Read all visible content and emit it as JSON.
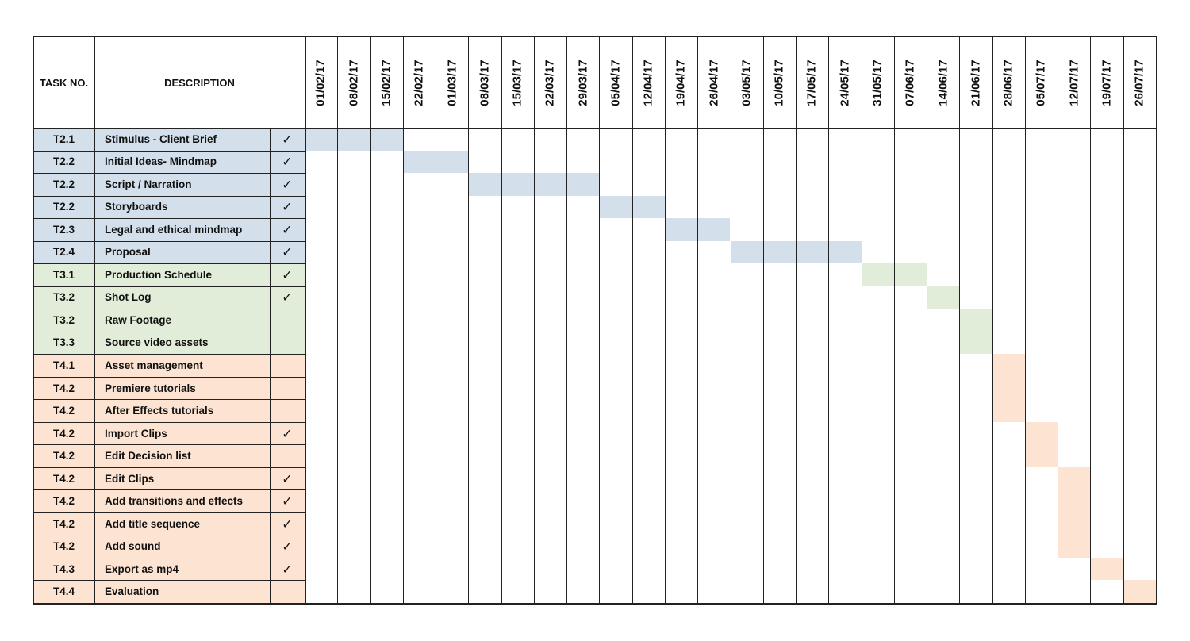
{
  "chart_data": {
    "type": "gantt",
    "headers": {
      "task_no": "TASK NO.",
      "description": "DESCRIPTION"
    },
    "check_mark": "✓",
    "colors": {
      "T2": "#d3dfea",
      "T3": "#e2edd9",
      "T4": "#fde4d2"
    },
    "weeks": [
      "01/02/17",
      "08/02/17",
      "15/02/17",
      "22/02/17",
      "01/03/17",
      "08/03/17",
      "15/03/17",
      "22/03/17",
      "29/03/17",
      "05/04/17",
      "12/04/17",
      "19/04/17",
      "26/04/17",
      "03/05/17",
      "10/05/17",
      "17/05/17",
      "24/05/17",
      "31/05/17",
      "07/06/17",
      "14/06/17",
      "21/06/17",
      "28/06/17",
      "05/07/17",
      "12/07/17",
      "19/07/17",
      "26/07/17"
    ],
    "tasks": [
      {
        "task_no": "T2.1",
        "description": "Stimulus - Client Brief",
        "done": true,
        "phase": "T2",
        "start": "01/02/17",
        "end": "15/02/17",
        "bar_rows": 1
      },
      {
        "task_no": "T2.2",
        "description": "Initial Ideas- Mindmap",
        "done": true,
        "phase": "T2",
        "start": "22/02/17",
        "end": "01/03/17",
        "bar_rows": 1
      },
      {
        "task_no": "T2.2",
        "description": "Script / Narration",
        "done": true,
        "phase": "T2",
        "start": "08/03/17",
        "end": "29/03/17",
        "bar_rows": 1
      },
      {
        "task_no": "T2.2",
        "description": "Storyboards",
        "done": true,
        "phase": "T2",
        "start": "05/04/17",
        "end": "12/04/17",
        "bar_rows": 1
      },
      {
        "task_no": "T2.3",
        "description": "Legal and ethical mindmap",
        "done": true,
        "phase": "T2",
        "start": "19/04/17",
        "end": "26/04/17",
        "bar_rows": 1
      },
      {
        "task_no": "T2.4",
        "description": "Proposal",
        "done": true,
        "phase": "T2",
        "start": "03/05/17",
        "end": "24/05/17",
        "bar_rows": 1
      },
      {
        "task_no": "T3.1",
        "description": "Production Schedule",
        "done": true,
        "phase": "T3",
        "start": "31/05/17",
        "end": "07/06/17",
        "bar_rows": 1
      },
      {
        "task_no": "T3.2",
        "description": "Shot Log",
        "done": true,
        "phase": "T3",
        "start": "14/06/17",
        "end": "14/06/17",
        "bar_rows": 1
      },
      {
        "task_no": "T3.2",
        "description": "Raw Footage",
        "done": false,
        "phase": "T3",
        "start": "21/06/17",
        "end": "21/06/17",
        "bar_rows": 2
      },
      {
        "task_no": "T3.3",
        "description": "Source video assets",
        "done": false,
        "phase": "T3",
        "start": null,
        "end": null,
        "bar_rows": 0
      },
      {
        "task_no": "T4.1",
        "description": "Asset management",
        "done": false,
        "phase": "T4",
        "start": "28/06/17",
        "end": "28/06/17",
        "bar_rows": 3
      },
      {
        "task_no": "T4.2",
        "description": "Premiere tutorials",
        "done": false,
        "phase": "T4",
        "start": null,
        "end": null,
        "bar_rows": 0
      },
      {
        "task_no": "T4.2",
        "description": "After Effects tutorials",
        "done": false,
        "phase": "T4",
        "start": null,
        "end": null,
        "bar_rows": 0
      },
      {
        "task_no": "T4.2",
        "description": "Import Clips",
        "done": true,
        "phase": "T4",
        "start": "05/07/17",
        "end": "05/07/17",
        "bar_rows": 2
      },
      {
        "task_no": "T4.2",
        "description": "Edit Decision list",
        "done": false,
        "phase": "T4",
        "start": null,
        "end": null,
        "bar_rows": 0
      },
      {
        "task_no": "T4.2",
        "description": "Edit Clips",
        "done": true,
        "phase": "T4",
        "start": "12/07/17",
        "end": "12/07/17",
        "bar_rows": 4
      },
      {
        "task_no": "T4.2",
        "description": "Add transitions and effects",
        "done": true,
        "phase": "T4",
        "start": null,
        "end": null,
        "bar_rows": 0
      },
      {
        "task_no": "T4.2",
        "description": "Add title sequence",
        "done": true,
        "phase": "T4",
        "start": null,
        "end": null,
        "bar_rows": 0
      },
      {
        "task_no": "T4.2",
        "description": "Add sound",
        "done": true,
        "phase": "T4",
        "start": null,
        "end": null,
        "bar_rows": 0
      },
      {
        "task_no": "T4.3",
        "description": "Export as mp4",
        "done": true,
        "phase": "T4",
        "start": "19/07/17",
        "end": "19/07/17",
        "bar_rows": 1
      },
      {
        "task_no": "T4.4",
        "description": "Evaluation",
        "done": false,
        "phase": "T4",
        "start": "26/07/17",
        "end": "26/07/17",
        "bar_rows": 1
      }
    ]
  }
}
